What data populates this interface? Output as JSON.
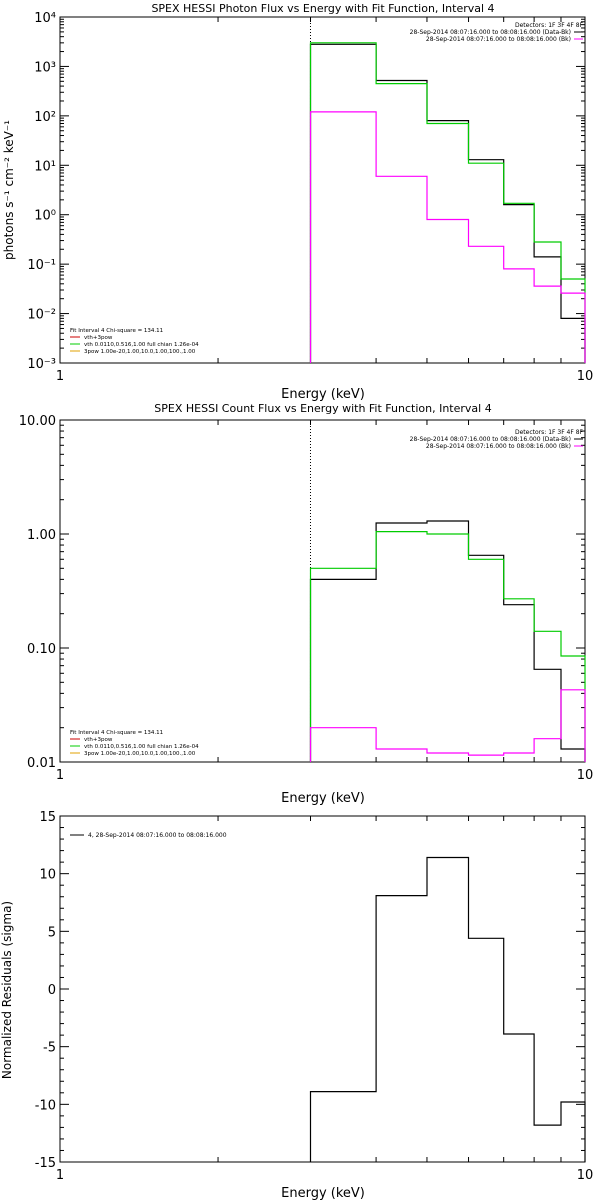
{
  "chart_data": [
    {
      "type": "line",
      "title": "SPEX HESSI Photon Flux vs Energy with Fit Function, Interval 4",
      "xlabel": "Energy (keV)",
      "ylabel": "photons s⁻¹ cm⁻² keV⁻¹",
      "xscale": "log",
      "yscale": "log",
      "xlim": [
        1,
        10
      ],
      "ylim": [
        0.001,
        10000
      ],
      "x_ticks": [
        {
          "v": 1,
          "label": "1"
        },
        {
          "v": 10,
          "label": "10"
        }
      ],
      "y_ticks": [
        {
          "v": 0.001,
          "label": "10⁻³"
        },
        {
          "v": 0.01,
          "label": "10⁻²"
        },
        {
          "v": 0.1,
          "label": "10⁻¹"
        },
        {
          "v": 1,
          "label": "10⁰"
        },
        {
          "v": 10,
          "label": "10¹"
        },
        {
          "v": 100,
          "label": "10²"
        },
        {
          "v": 1000,
          "label": "10³"
        },
        {
          "v": 10000,
          "label": "10⁴"
        }
      ],
      "vline_x": 3.0,
      "legend_top": [
        "Detectors: 1F 3F 4F 8F",
        "28-Sep-2014 08:07:16.000 to 08:08:16.000 (Data-Bk)",
        "28-Sep-2014 08:07:16.000 to 08:08:16.000 (Bk)"
      ],
      "legend_bottom": [
        "Fit Interval 4   Chi-square = 134.11",
        "vth+3pow",
        "vth 0.0110,0.516,1.00  full chian 1.26e-04",
        "3pow 1.00e-20,1.00,10.0,1.00,100.,1.00"
      ],
      "edges": [
        3.0,
        4.0,
        5.0,
        6.0,
        7.0,
        8.0,
        9.0,
        10.0
      ],
      "series": [
        {
          "name": "28-Sep-2014 08:07:16.000 to 08:08:16.000 (Data-Bk)",
          "color": "#000000",
          "values": [
            2800,
            520,
            80,
            13,
            1.6,
            0.14,
            0.008
          ]
        },
        {
          "name": "vth+3pow",
          "color": "#00cc00",
          "values": [
            3000,
            450,
            70,
            11,
            1.7,
            0.28,
            0.05
          ]
        },
        {
          "name": "28-Sep-2014 08:07:16.000 to 08:08:16.000 (Bk)",
          "color": "#ff00ff",
          "values": [
            120,
            6,
            0.8,
            0.23,
            0.08,
            0.036,
            0.026
          ]
        }
      ]
    },
    {
      "type": "line",
      "title": "SPEX HESSI Count Flux vs Energy with Fit Function, Interval 4",
      "xlabel": "Energy (keV)",
      "ylabel": "",
      "xscale": "log",
      "yscale": "log",
      "xlim": [
        1,
        10
      ],
      "ylim": [
        0.01,
        10
      ],
      "x_ticks": [
        {
          "v": 1,
          "label": "1"
        },
        {
          "v": 10,
          "label": "10"
        }
      ],
      "y_ticks": [
        {
          "v": 0.01,
          "label": "0.01"
        },
        {
          "v": 0.1,
          "label": "0.10"
        },
        {
          "v": 1,
          "label": "1.00"
        },
        {
          "v": 10,
          "label": "10.00"
        }
      ],
      "vline_x": 3.0,
      "legend_top": [
        "Detectors: 1F 3F 4F 8F",
        "28-Sep-2014 08:07:16.000 to 08:08:16.000 (Data-Bk)",
        "28-Sep-2014 08:07:16.000 to 08:08:16.000 (Bk)"
      ],
      "legend_bottom": [
        "Fit Interval 4   Chi-square = 134.11",
        "vth+3pow",
        "vth 0.0110,0.516,1.00  full chian 1.26e-04",
        "3pow 1.00e-20,1.00,10.0,1.00,100.,1.00"
      ],
      "edges": [
        3.0,
        4.0,
        5.0,
        6.0,
        7.0,
        8.0,
        9.0,
        10.0
      ],
      "series": [
        {
          "name": "28-Sep-2014 08:07:16.000 to 08:08:16.000 (Data-Bk)",
          "color": "#000000",
          "values": [
            0.4,
            1.25,
            1.3,
            0.65,
            0.24,
            0.065,
            0.013
          ]
        },
        {
          "name": "vth+3pow",
          "color": "#00cc00",
          "values": [
            0.5,
            1.05,
            1.0,
            0.6,
            0.27,
            0.14,
            0.085
          ]
        },
        {
          "name": "28-Sep-2014 08:07:16.000 to 08:08:16.000 (Bk)",
          "color": "#ff00ff",
          "values": [
            0.02,
            0.013,
            0.012,
            0.0115,
            0.012,
            0.016,
            0.043
          ]
        }
      ]
    },
    {
      "type": "line",
      "title": "",
      "xlabel": "Energy (keV)",
      "ylabel": "Normalized Residuals (sigma)",
      "xscale": "log",
      "yscale": "linear",
      "xlim": [
        1,
        10
      ],
      "ylim": [
        -15,
        15
      ],
      "x_ticks": [
        {
          "v": 1,
          "label": "1"
        },
        {
          "v": 10,
          "label": "10"
        }
      ],
      "y_ticks": [
        {
          "v": -15,
          "label": "-15"
        },
        {
          "v": -10,
          "label": "-10"
        },
        {
          "v": -5,
          "label": "-5"
        },
        {
          "v": 0,
          "label": "0"
        },
        {
          "v": 5,
          "label": "5"
        },
        {
          "v": 10,
          "label": "10"
        },
        {
          "v": 15,
          "label": "15"
        }
      ],
      "legend_top": [
        "4, 28-Sep-2014 08:07:16.000 to 08:08:16.000"
      ],
      "edges": [
        3.0,
        4.0,
        5.0,
        6.0,
        7.0,
        8.0,
        9.0,
        10.0
      ],
      "series": [
        {
          "name": "4, 28-Sep-2014 08:07:16.000 to 08:08:16.000",
          "color": "#000000",
          "values": [
            -8.9,
            8.1,
            11.4,
            4.4,
            -3.9,
            -11.8,
            -9.8
          ]
        }
      ]
    }
  ]
}
